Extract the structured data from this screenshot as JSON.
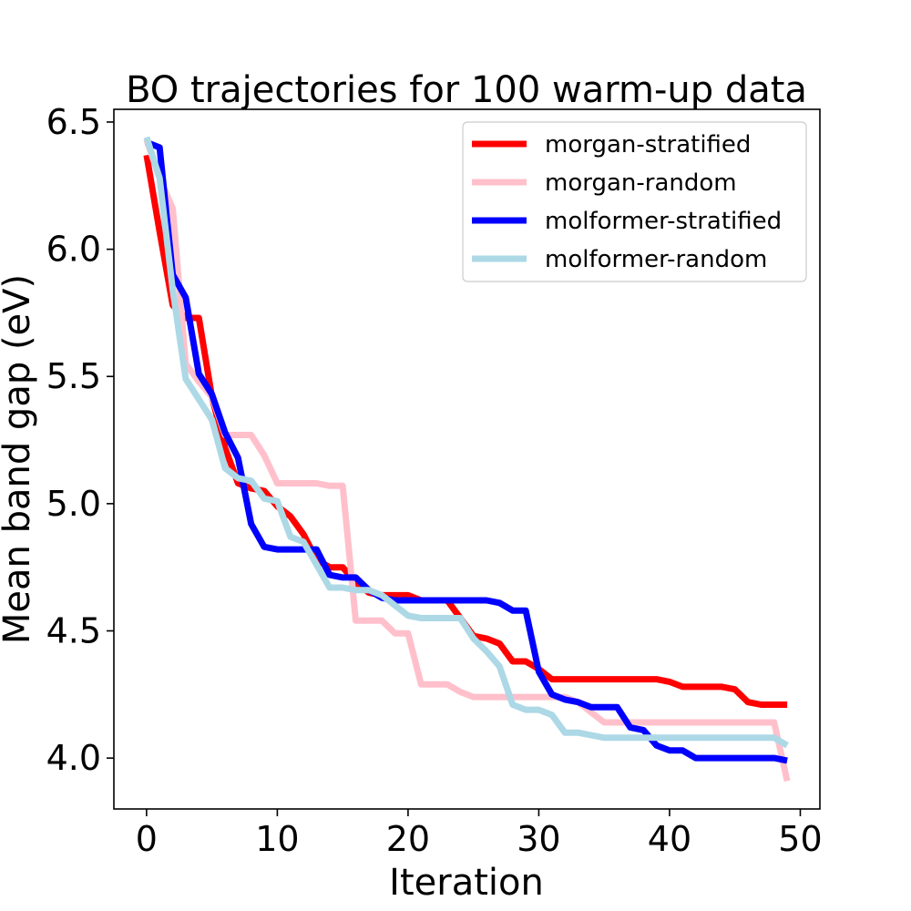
{
  "chart_data": {
    "type": "line",
    "title": "BO trajectories for 100 warm-up data",
    "xlabel": "Iteration",
    "ylabel": "Mean band gap (eV)",
    "xlim": [
      -2.5,
      51.5
    ],
    "ylim": [
      3.8,
      6.55
    ],
    "xticks": [
      0,
      10,
      20,
      30,
      40,
      50
    ],
    "yticks": [
      4.0,
      4.5,
      5.0,
      5.5,
      6.0,
      6.5
    ],
    "xtick_labels": [
      "0",
      "10",
      "20",
      "30",
      "40",
      "50"
    ],
    "ytick_labels": [
      "4.0",
      "4.5",
      "5.0",
      "5.5",
      "6.0",
      "6.5"
    ],
    "grid": false,
    "legend_position": "top-right",
    "x": [
      0,
      1,
      2,
      3,
      4,
      5,
      6,
      7,
      8,
      9,
      10,
      11,
      12,
      13,
      14,
      15,
      16,
      17,
      18,
      19,
      20,
      21,
      22,
      23,
      24,
      25,
      26,
      27,
      28,
      29,
      30,
      31,
      32,
      33,
      34,
      35,
      36,
      37,
      38,
      39,
      40,
      41,
      42,
      43,
      44,
      45,
      46,
      47,
      48,
      49
    ],
    "series": [
      {
        "name": "morgan-stratified",
        "color": "#ff0000",
        "values": [
          6.37,
          6.07,
          5.78,
          5.73,
          5.73,
          5.42,
          5.22,
          5.08,
          5.06,
          5.05,
          4.99,
          4.95,
          4.88,
          4.78,
          4.75,
          4.75,
          4.69,
          4.65,
          4.64,
          4.64,
          4.64,
          4.62,
          4.62,
          4.62,
          4.55,
          4.48,
          4.47,
          4.45,
          4.38,
          4.38,
          4.35,
          4.31,
          4.31,
          4.31,
          4.31,
          4.31,
          4.31,
          4.31,
          4.31,
          4.31,
          4.3,
          4.28,
          4.28,
          4.28,
          4.28,
          4.27,
          4.22,
          4.21,
          4.21,
          4.21
        ]
      },
      {
        "name": "morgan-random",
        "color": "#ffc0cb",
        "values": [
          6.43,
          6.28,
          6.16,
          5.55,
          5.48,
          5.42,
          5.27,
          5.27,
          5.27,
          5.19,
          5.08,
          5.08,
          5.08,
          5.08,
          5.07,
          5.07,
          4.54,
          4.54,
          4.54,
          4.49,
          4.49,
          4.29,
          4.29,
          4.29,
          4.26,
          4.24,
          4.24,
          4.24,
          4.24,
          4.24,
          4.24,
          4.24,
          4.24,
          4.22,
          4.18,
          4.14,
          4.14,
          4.14,
          4.14,
          4.14,
          4.14,
          4.14,
          4.14,
          4.14,
          4.14,
          4.14,
          4.14,
          4.14,
          4.14,
          3.91
        ]
      },
      {
        "name": "molformer-stratified",
        "color": "#0000ff",
        "values": [
          6.42,
          6.4,
          5.9,
          5.81,
          5.51,
          5.43,
          5.28,
          5.18,
          4.92,
          4.83,
          4.82,
          4.82,
          4.82,
          4.82,
          4.72,
          4.71,
          4.71,
          4.66,
          4.63,
          4.62,
          4.62,
          4.62,
          4.62,
          4.62,
          4.62,
          4.62,
          4.62,
          4.61,
          4.58,
          4.58,
          4.34,
          4.25,
          4.23,
          4.22,
          4.2,
          4.2,
          4.2,
          4.12,
          4.11,
          4.05,
          4.03,
          4.03,
          4.0,
          4.0,
          4.0,
          4.0,
          4.0,
          4.0,
          4.0,
          3.99
        ]
      },
      {
        "name": "molformer-random",
        "color": "#add8e6",
        "values": [
          6.44,
          6.28,
          5.84,
          5.49,
          5.41,
          5.33,
          5.14,
          5.1,
          5.09,
          5.02,
          5.01,
          4.87,
          4.85,
          4.76,
          4.67,
          4.67,
          4.66,
          4.66,
          4.64,
          4.6,
          4.56,
          4.55,
          4.55,
          4.55,
          4.55,
          4.47,
          4.42,
          4.36,
          4.21,
          4.19,
          4.19,
          4.17,
          4.1,
          4.1,
          4.09,
          4.08,
          4.08,
          4.08,
          4.08,
          4.08,
          4.08,
          4.08,
          4.08,
          4.08,
          4.08,
          4.08,
          4.08,
          4.08,
          4.08,
          4.05
        ]
      }
    ]
  }
}
